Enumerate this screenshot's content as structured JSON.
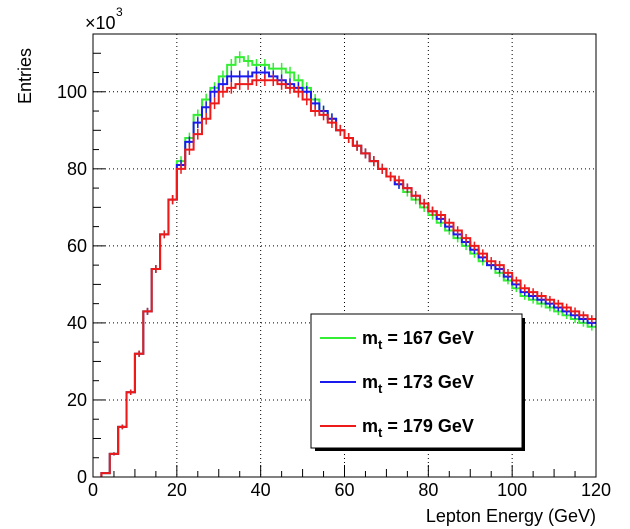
{
  "chart_data": {
    "type": "line",
    "title": "",
    "xlabel": "Lepton Energy (GeV)",
    "ylabel": "Entries",
    "y_multiplier_label": "×10",
    "y_multiplier_exponent": "3",
    "xlim": [
      0,
      120
    ],
    "ylim": [
      0,
      115
    ],
    "xticks": [
      "0",
      "20",
      "40",
      "60",
      "80",
      "100",
      "120"
    ],
    "yticks": [
      "0",
      "20",
      "40",
      "60",
      "80",
      "100"
    ],
    "grid": true,
    "legend_position": "bottom-right",
    "bin_width": 2,
    "bin_starts": [
      2,
      4,
      6,
      8,
      10,
      12,
      14,
      16,
      18,
      20,
      22,
      24,
      26,
      28,
      30,
      32,
      34,
      36,
      38,
      40,
      42,
      44,
      46,
      48,
      50,
      52,
      54,
      56,
      58,
      60,
      62,
      64,
      66,
      68,
      70,
      72,
      74,
      76,
      78,
      80,
      82,
      84,
      86,
      88,
      90,
      92,
      94,
      96,
      98,
      100,
      102,
      104,
      106,
      108,
      110,
      112,
      114,
      116,
      118
    ],
    "series": [
      {
        "label_main": "m",
        "label_sub": "t",
        "label_rest": "  = 167 GeV",
        "color": "#33ee33",
        "values": [
          1,
          6,
          13,
          22,
          32,
          43,
          54,
          63,
          72,
          82,
          88,
          94,
          98,
          101,
          104,
          107,
          109,
          108,
          107,
          107,
          106,
          106,
          105,
          103,
          101,
          98,
          95,
          93,
          90,
          88,
          86,
          84,
          82,
          80,
          78,
          76,
          74,
          72,
          70,
          68,
          66,
          64,
          62,
          60,
          58,
          56,
          55,
          53,
          51,
          49,
          47,
          46,
          45,
          44,
          43,
          42,
          41,
          40,
          39
        ],
        "errors": [
          0.2,
          0.4,
          0.6,
          0.7,
          0.8,
          0.9,
          1,
          1,
          1.2,
          1.3,
          1.4,
          1.4,
          1.5,
          1.5,
          1.5,
          1.5,
          1.5,
          1.5,
          1.5,
          1.5,
          1.5,
          1.5,
          1.5,
          1.5,
          1.5,
          1.4,
          1.4,
          1.4,
          1.4,
          1.3,
          1.3,
          1.3,
          1.3,
          1.3,
          1.2,
          1.2,
          1.2,
          1.2,
          1.2,
          1.2,
          1.1,
          1.1,
          1.1,
          1.1,
          1.1,
          1.1,
          1.1,
          1.1,
          1,
          1,
          1,
          1,
          1,
          1,
          1,
          1,
          1,
          1,
          1
        ]
      },
      {
        "label_main": "m",
        "label_sub": "t",
        "label_rest": "  = 173 GeV",
        "color": "#1a1aee",
        "values": [
          1,
          6,
          13,
          22,
          32,
          43,
          54,
          63,
          72,
          81,
          87,
          92,
          96,
          100,
          102,
          104,
          104,
          104,
          105,
          105,
          104,
          103,
          102,
          101,
          100,
          97,
          95,
          93,
          90,
          88,
          86,
          84,
          82,
          80,
          78,
          76,
          75,
          73,
          71,
          69,
          67,
          65,
          63,
          61,
          59,
          57,
          55,
          54,
          52,
          50,
          48,
          47,
          46,
          45,
          44,
          43,
          42,
          41,
          40
        ],
        "errors": [
          0.2,
          0.4,
          0.6,
          0.7,
          0.8,
          0.9,
          1,
          1,
          1.2,
          1.3,
          1.4,
          1.4,
          1.5,
          1.5,
          1.5,
          1.5,
          1.5,
          1.5,
          1.5,
          1.5,
          1.5,
          1.5,
          1.5,
          1.5,
          1.5,
          1.4,
          1.4,
          1.4,
          1.4,
          1.3,
          1.3,
          1.3,
          1.3,
          1.3,
          1.2,
          1.2,
          1.2,
          1.2,
          1.2,
          1.2,
          1.1,
          1.1,
          1.1,
          1.1,
          1.1,
          1.1,
          1.1,
          1.1,
          1,
          1,
          1,
          1,
          1,
          1,
          1,
          1,
          1,
          1,
          1
        ]
      },
      {
        "label_main": "m",
        "label_sub": "t",
        "label_rest": "  = 179 GeV",
        "color": "#ee1a1a",
        "values": [
          1,
          6,
          13,
          22,
          32,
          43,
          54,
          63,
          72,
          80,
          85,
          89,
          93,
          97,
          100,
          101,
          102,
          102,
          103,
          103,
          103,
          102,
          101,
          100,
          98,
          95,
          94,
          92,
          90,
          88,
          86,
          84,
          82,
          80,
          78,
          77,
          75,
          73,
          71,
          69,
          68,
          66,
          64,
          62,
          60,
          58,
          56,
          55,
          53,
          51,
          49,
          48,
          47,
          46,
          45,
          44,
          43,
          42,
          41
        ],
        "errors": [
          0.2,
          0.4,
          0.6,
          0.7,
          0.8,
          0.9,
          1,
          1,
          1.2,
          1.3,
          1.4,
          1.4,
          1.5,
          1.5,
          1.5,
          1.5,
          1.5,
          1.5,
          1.5,
          1.5,
          1.5,
          1.5,
          1.5,
          1.5,
          1.5,
          1.4,
          1.4,
          1.4,
          1.4,
          1.3,
          1.3,
          1.3,
          1.3,
          1.3,
          1.2,
          1.2,
          1.2,
          1.2,
          1.2,
          1.2,
          1.1,
          1.1,
          1.1,
          1.1,
          1.1,
          1.1,
          1.1,
          1.1,
          1,
          1,
          1,
          1,
          1,
          1,
          1,
          1,
          1,
          1,
          1
        ]
      }
    ]
  }
}
